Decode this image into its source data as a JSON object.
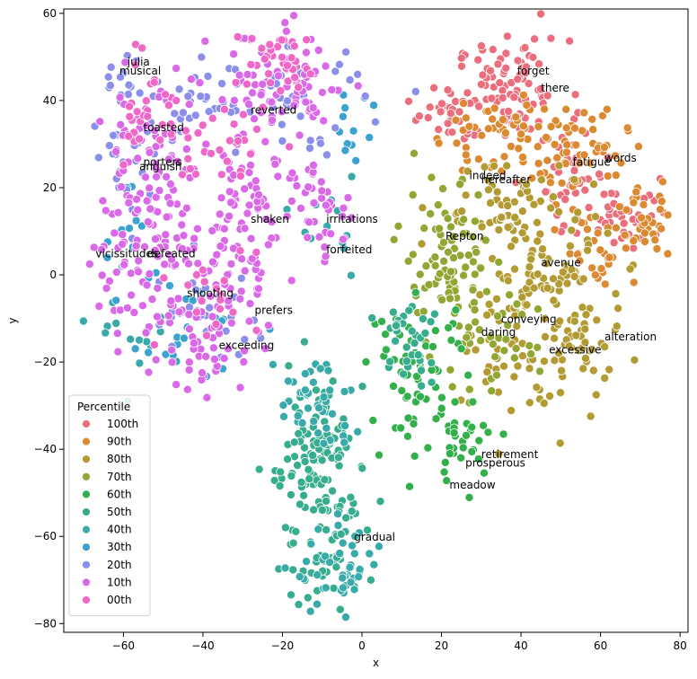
{
  "chart_data": {
    "type": "scatter",
    "xlabel": "x",
    "ylabel": "y",
    "xlim": [
      -75,
      82
    ],
    "ylim": [
      -82,
      61
    ],
    "x_ticks": [
      -60,
      -40,
      -20,
      0,
      20,
      40,
      60,
      80
    ],
    "y_ticks": [
      -80,
      -60,
      -40,
      -20,
      0,
      20,
      40,
      60
    ],
    "grid": false,
    "legend": {
      "title": "Percentile",
      "placement": "bottom-left",
      "entries": [
        {
          "label": "100th",
          "color": "#ea6e7c"
        },
        {
          "label": "90th",
          "color": "#db8a32"
        },
        {
          "label": "80th",
          "color": "#b29b32"
        },
        {
          "label": "70th",
          "color": "#92a733"
        },
        {
          "label": "60th",
          "color": "#33b04c"
        },
        {
          "label": "50th",
          "color": "#36ad8e"
        },
        {
          "label": "40th",
          "color": "#38aaa9"
        },
        {
          "label": "30th",
          "color": "#3ba3d0"
        },
        {
          "label": "20th",
          "color": "#8c8fe9"
        },
        {
          "label": "10th",
          "color": "#da69e8"
        },
        {
          "label": "00th",
          "color": "#ef67c7"
        }
      ]
    },
    "clusters": [
      {
        "series": "100th",
        "center": [
          38,
          42
        ],
        "spread": [
          7,
          6
        ],
        "count": 90
      },
      {
        "series": "100th",
        "center": [
          22,
          37
        ],
        "spread": [
          4,
          3
        ],
        "count": 35
      },
      {
        "series": "100th",
        "center": [
          55,
          22
        ],
        "spread": [
          5,
          6
        ],
        "count": 40
      },
      {
        "series": "100th",
        "center": [
          68,
          14
        ],
        "spread": [
          5,
          4
        ],
        "count": 35
      },
      {
        "series": "90th",
        "center": [
          35,
          32
        ],
        "spread": [
          8,
          5
        ],
        "count": 60
      },
      {
        "series": "90th",
        "center": [
          55,
          28
        ],
        "spread": [
          6,
          5
        ],
        "count": 45
      },
      {
        "series": "90th",
        "center": [
          70,
          12
        ],
        "spread": [
          5,
          4
        ],
        "count": 40
      },
      {
        "series": "90th",
        "center": [
          58,
          5
        ],
        "spread": [
          4,
          6
        ],
        "count": 25
      },
      {
        "series": "80th",
        "center": [
          35,
          15
        ],
        "spread": [
          8,
          6
        ],
        "count": 60
      },
      {
        "series": "80th",
        "center": [
          45,
          0
        ],
        "spread": [
          9,
          7
        ],
        "count": 70
      },
      {
        "series": "80th",
        "center": [
          45,
          -20
        ],
        "spread": [
          9,
          7
        ],
        "count": 60
      },
      {
        "series": "80th",
        "center": [
          55,
          -12
        ],
        "spread": [
          6,
          6
        ],
        "count": 30
      },
      {
        "series": "70th",
        "center": [
          22,
          5
        ],
        "spread": [
          6,
          8
        ],
        "count": 50
      },
      {
        "series": "70th",
        "center": [
          30,
          -15
        ],
        "spread": [
          7,
          6
        ],
        "count": 45
      },
      {
        "series": "70th",
        "center": [
          20,
          -3
        ],
        "spread": [
          5,
          5
        ],
        "count": 30
      },
      {
        "series": "60th",
        "center": [
          14,
          -22
        ],
        "spread": [
          6,
          8
        ],
        "count": 60
      },
      {
        "series": "60th",
        "center": [
          25,
          -38
        ],
        "spread": [
          5,
          5
        ],
        "count": 35
      },
      {
        "series": "50th",
        "center": [
          12,
          -15
        ],
        "spread": [
          5,
          6
        ],
        "count": 35
      },
      {
        "series": "50th",
        "center": [
          -10,
          -38
        ],
        "spread": [
          4,
          8
        ],
        "count": 70
      },
      {
        "series": "50th",
        "center": [
          -8,
          -60
        ],
        "spread": [
          6,
          9
        ],
        "count": 70
      },
      {
        "series": "50th",
        "center": [
          -15,
          -45
        ],
        "spread": [
          4,
          6
        ],
        "count": 25
      },
      {
        "series": "40th",
        "center": [
          -12,
          -30
        ],
        "spread": [
          5,
          6
        ],
        "count": 40
      },
      {
        "series": "40th",
        "center": [
          -5,
          -68
        ],
        "spread": [
          6,
          5
        ],
        "count": 40
      },
      {
        "series": "40th",
        "center": [
          -55,
          -15
        ],
        "spread": [
          5,
          5
        ],
        "count": 15
      },
      {
        "series": "40th",
        "center": [
          -10,
          12
        ],
        "spread": [
          4,
          5
        ],
        "count": 12
      },
      {
        "series": "30th",
        "center": [
          -2,
          35
        ],
        "spread": [
          3,
          5
        ],
        "count": 12
      },
      {
        "series": "30th",
        "center": [
          -45,
          -12
        ],
        "spread": [
          8,
          6
        ],
        "count": 20
      },
      {
        "series": "30th",
        "center": [
          -58,
          10
        ],
        "spread": [
          4,
          8
        ],
        "count": 15
      },
      {
        "series": "20th",
        "center": [
          -58,
          28
        ],
        "spread": [
          5,
          8
        ],
        "count": 30
      },
      {
        "series": "20th",
        "center": [
          -40,
          40
        ],
        "spread": [
          5,
          4
        ],
        "count": 25
      },
      {
        "series": "20th",
        "center": [
          -15,
          40
        ],
        "spread": [
          8,
          6
        ],
        "count": 40
      },
      {
        "series": "20th",
        "center": [
          -40,
          -10
        ],
        "spread": [
          8,
          6
        ],
        "count": 30
      },
      {
        "series": "20th",
        "center": [
          -60,
          45
        ],
        "spread": [
          3,
          3
        ],
        "count": 12
      },
      {
        "series": "10th",
        "center": [
          -20,
          42
        ],
        "spread": [
          9,
          7
        ],
        "count": 80
      },
      {
        "series": "10th",
        "center": [
          -55,
          25
        ],
        "spread": [
          6,
          10
        ],
        "count": 70
      },
      {
        "series": "10th",
        "center": [
          -45,
          5
        ],
        "spread": [
          9,
          8
        ],
        "count": 70
      },
      {
        "series": "10th",
        "center": [
          -40,
          -15
        ],
        "spread": [
          7,
          6
        ],
        "count": 50
      },
      {
        "series": "10th",
        "center": [
          -25,
          20
        ],
        "spread": [
          6,
          6
        ],
        "count": 50
      },
      {
        "series": "10th",
        "center": [
          -10,
          15
        ],
        "spread": [
          4,
          6
        ],
        "count": 30
      },
      {
        "series": "10th",
        "center": [
          -30,
          0
        ],
        "spread": [
          5,
          5
        ],
        "count": 35
      },
      {
        "series": "10th",
        "center": [
          -60,
          0
        ],
        "spread": [
          4,
          6
        ],
        "count": 30
      },
      {
        "series": "00th",
        "center": [
          -20,
          48
        ],
        "spread": [
          6,
          4
        ],
        "count": 40
      },
      {
        "series": "00th",
        "center": [
          -55,
          40
        ],
        "spread": [
          4,
          5
        ],
        "count": 25
      },
      {
        "series": "00th",
        "center": [
          -35,
          30
        ],
        "spread": [
          8,
          5
        ],
        "count": 30
      },
      {
        "series": "00th",
        "center": [
          -40,
          -5
        ],
        "spread": [
          7,
          6
        ],
        "count": 20
      }
    ],
    "annotations": [
      {
        "text": "julia",
        "x": -59,
        "y": 48
      },
      {
        "text": "musical",
        "x": -61,
        "y": 46
      },
      {
        "text": "toasted",
        "x": -55,
        "y": 33
      },
      {
        "text": "reverted",
        "x": -28,
        "y": 37
      },
      {
        "text": "porters",
        "x": -55,
        "y": 25
      },
      {
        "text": "anguish",
        "x": -56,
        "y": 24
      },
      {
        "text": "shaken",
        "x": -28,
        "y": 12
      },
      {
        "text": "irritations",
        "x": -9,
        "y": 12
      },
      {
        "text": "forfeited",
        "x": -9,
        "y": 5
      },
      {
        "text": "vicissitudes",
        "x": -67,
        "y": 4
      },
      {
        "text": "defeated",
        "x": -54,
        "y": 4
      },
      {
        "text": "shooting",
        "x": -44,
        "y": -5
      },
      {
        "text": "prefers",
        "x": -27,
        "y": -9
      },
      {
        "text": "exceeding",
        "x": -36,
        "y": -17
      },
      {
        "text": "forget",
        "x": 39,
        "y": 46
      },
      {
        "text": "there",
        "x": 45,
        "y": 42
      },
      {
        "text": "words",
        "x": 61,
        "y": 26
      },
      {
        "text": "fatigue",
        "x": 53,
        "y": 25
      },
      {
        "text": "indeed",
        "x": 27,
        "y": 22
      },
      {
        "text": "hereafter",
        "x": 30,
        "y": 21
      },
      {
        "text": "Repton",
        "x": 21,
        "y": 8
      },
      {
        "text": "avenue",
        "x": 45,
        "y": 2
      },
      {
        "text": "conveying",
        "x": 35,
        "y": -11
      },
      {
        "text": "daring",
        "x": 30,
        "y": -14
      },
      {
        "text": "alteration",
        "x": 61,
        "y": -15
      },
      {
        "text": "excessive",
        "x": 47,
        "y": -18
      },
      {
        "text": "retirement",
        "x": 30,
        "y": -42
      },
      {
        "text": "prosperous",
        "x": 26,
        "y": -44
      },
      {
        "text": "meadow",
        "x": 22,
        "y": -49
      },
      {
        "text": "gradual",
        "x": -2,
        "y": -61
      }
    ]
  }
}
